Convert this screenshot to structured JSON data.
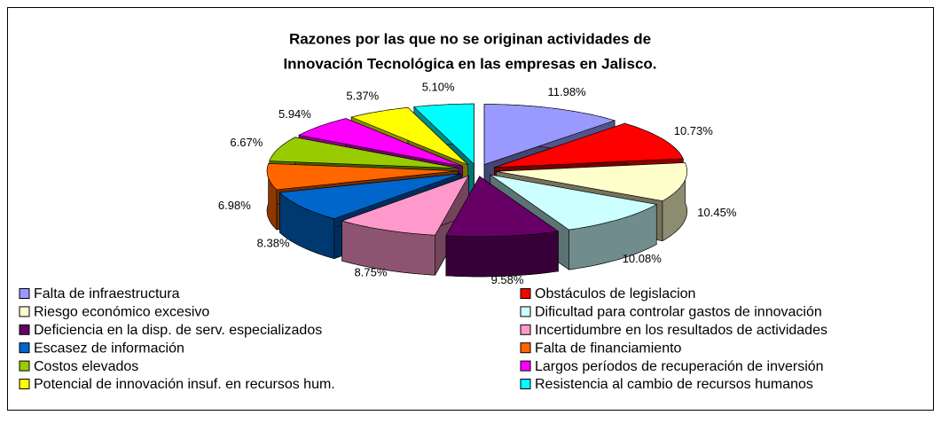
{
  "chart_data": {
    "type": "pie",
    "title": [
      "Razones por las que no se originan actividades de",
      "Innovación Tecnológica en las empresas en Jalisco."
    ],
    "categories": [
      "Falta de infraestructura",
      "Obstáculos de legislacion",
      "Riesgo económico excesivo",
      "Dificultad para controlar gastos de innovación",
      "Deficiencia en la disp. de serv. especializados",
      "Incertidumbre en los resultados de actividades",
      "Escasez de información",
      "Falta de financiamiento",
      "Costos elevados",
      "Largos períodos de recuperación de inversión",
      "Potencial de innovación insuf. en recursos hum.",
      "Resistencia al cambio de recursos humanos"
    ],
    "values": [
      11.98,
      10.73,
      10.45,
      10.08,
      9.58,
      8.75,
      8.38,
      6.98,
      6.67,
      5.94,
      5.37,
      5.1
    ],
    "value_labels": [
      "11.98%",
      "10.73%",
      "10.45%",
      "10.08%",
      "9.58%",
      "8.75%",
      "8.38%",
      "6.98%",
      "6.67%",
      "5.94%",
      "5.37%",
      "5.10%"
    ],
    "colors": [
      "#9999ff",
      "#ff0000",
      "#ffffcc",
      "#ccffff",
      "#660066",
      "#ff99cc",
      "#0066cc",
      "#ff6600",
      "#99cc00",
      "#ff00ff",
      "#ffff00",
      "#00ffff"
    ],
    "legend": "bottom"
  }
}
